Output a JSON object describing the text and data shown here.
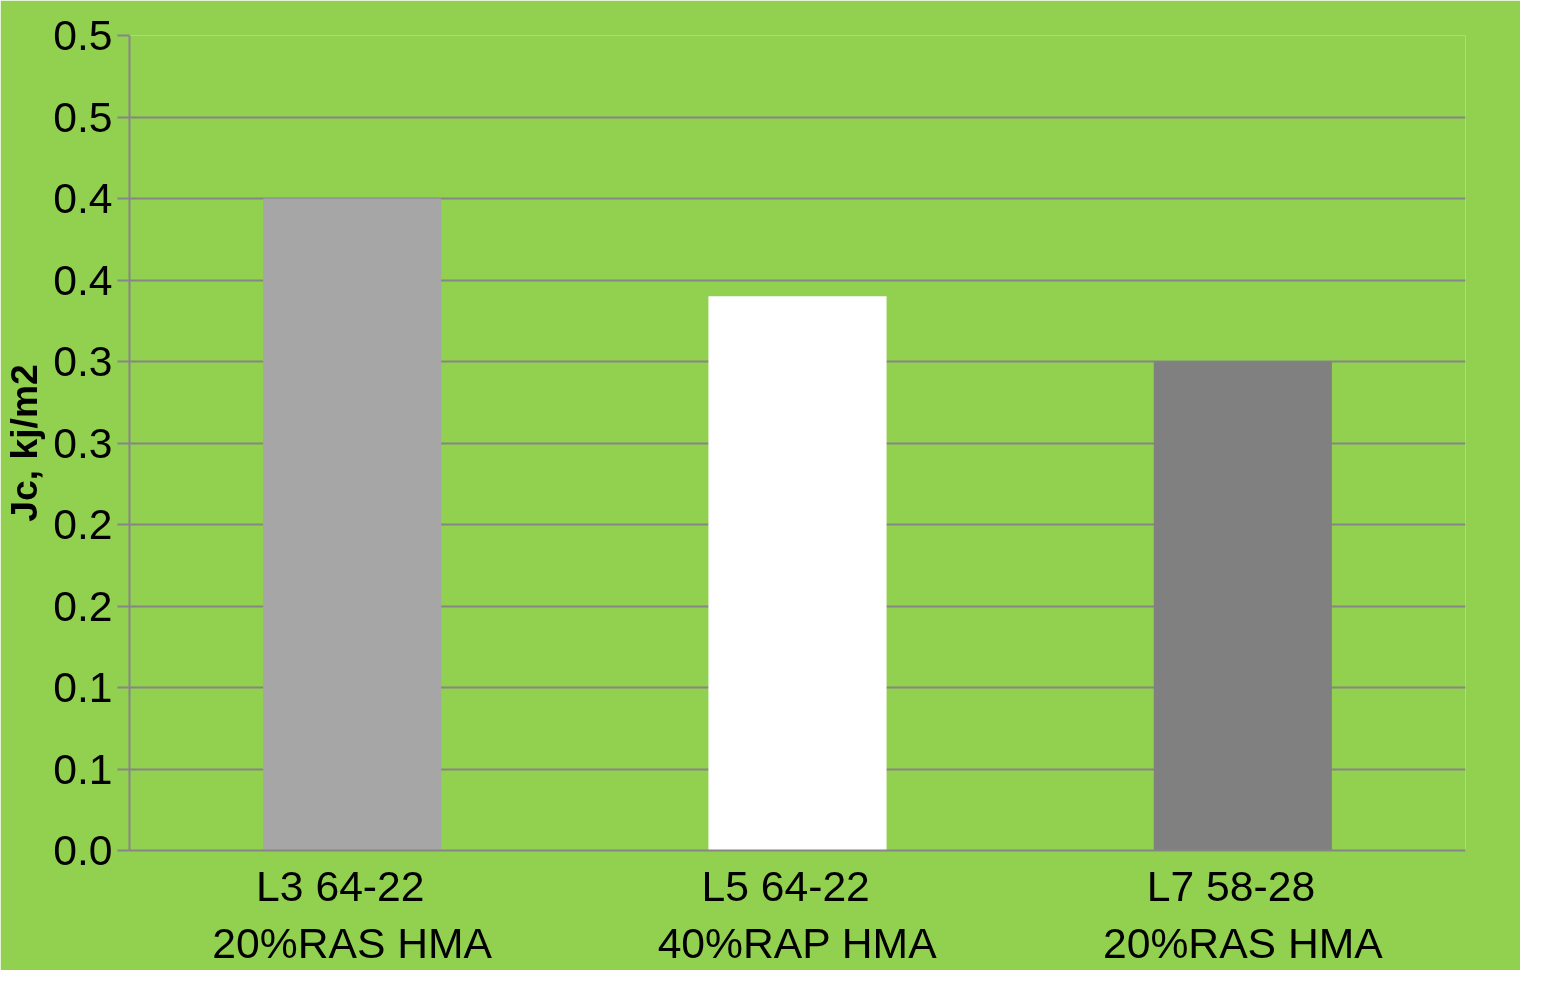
{
  "chart_data": {
    "type": "bar",
    "ylabel": "Jc, kj/m2",
    "categories": [
      "L3   64-22\n20%RAS HMA",
      "L5   64-22\n40%RAP HMA",
      "L7   58-28\n20%RAS HMA"
    ],
    "values": [
      0.4,
      0.34,
      0.3
    ],
    "colors": [
      "#a6a6a6",
      "#ffffff",
      "#808080"
    ],
    "ylim": [
      0,
      0.5
    ],
    "yticks": [
      {
        "value": 0,
        "label": "0.0"
      },
      {
        "value": 0.05,
        "label": "0.1"
      },
      0.1,
      {
        "value": 0.15,
        "label": "0.2"
      },
      0.2,
      {
        "value": 0.25,
        "label": "0.3"
      },
      0.3,
      {
        "value": 0.35,
        "label": "0.4"
      },
      0.4,
      {
        "value": 0.45,
        "label": "0.5"
      },
      0.5
    ],
    "grid": "y"
  }
}
